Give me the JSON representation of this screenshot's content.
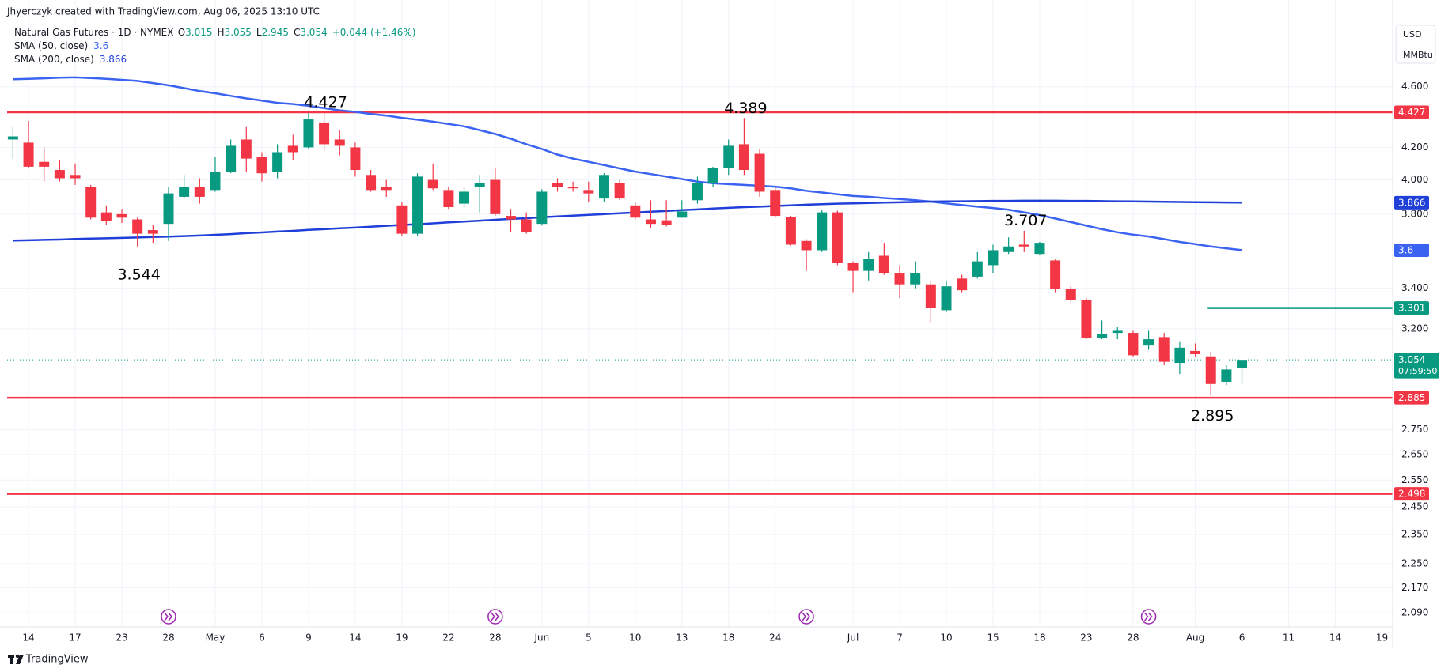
{
  "header": {
    "attribution": "Jhyerczyk created with TradingView.com, Aug 06, 2025 13:10 UTC"
  },
  "chart_data": {
    "type": "candlestick",
    "title": "Natural Gas Futures · 1D · NYMEX",
    "ohlc_letters": [
      "O",
      "H",
      "L",
      "C"
    ],
    "change": "+0.044 (+1.46%)",
    "currency": "USD",
    "unit": "MMBtu",
    "countdown": "07:59:50",
    "categories": [
      null,
      "14",
      null,
      null,
      "17",
      null,
      null,
      "23",
      null,
      null,
      "28",
      null,
      null,
      "May",
      null,
      null,
      "6",
      null,
      null,
      "9",
      null,
      null,
      "14",
      null,
      null,
      "19",
      null,
      null,
      "22",
      null,
      null,
      "28",
      null,
      null,
      "Jun",
      null,
      null,
      "5",
      null,
      null,
      "10",
      null,
      null,
      "13",
      null,
      null,
      "18",
      null,
      null,
      "24",
      null,
      null,
      null,
      null,
      "Jul",
      null,
      null,
      "7",
      null,
      null,
      "10",
      null,
      null,
      "15",
      null,
      null,
      "18",
      null,
      null,
      "23",
      null,
      null,
      "28",
      null,
      null,
      null,
      "Aug",
      null,
      null,
      "6",
      null,
      null,
      "11",
      null,
      null,
      "14",
      null,
      null,
      "19"
    ],
    "open": [
      4.25,
      4.23,
      4.11,
      4.06,
      4.03,
      3.96,
      3.81,
      3.8,
      3.77,
      3.71,
      3.745,
      3.9,
      3.96,
      3.94,
      4.05,
      4.25,
      4.14,
      4.05,
      4.21,
      4.2,
      4.36,
      4.25,
      4.2,
      4.03,
      3.96,
      3.85,
      3.69,
      4.0,
      3.94,
      3.86,
      3.96,
      4.0,
      3.79,
      3.77,
      3.745,
      3.98,
      3.96,
      3.94,
      3.89,
      3.98,
      3.85,
      3.77,
      3.765,
      3.78,
      3.88,
      3.98,
      4.07,
      4.22,
      4.16,
      3.94,
      3.785,
      3.65,
      3.6,
      3.81,
      3.53,
      3.49,
      3.57,
      3.48,
      3.42,
      3.42,
      3.29,
      3.45,
      3.46,
      3.52,
      3.59,
      3.63,
      3.58,
      3.545,
      3.395,
      3.34,
      3.155,
      3.18,
      3.18,
      3.12,
      3.16,
      3.04,
      3.095,
      3.07,
      2.955,
      3.015,
      null,
      null,
      null,
      null,
      null,
      null,
      null,
      null,
      null
    ],
    "high": [
      4.33,
      4.37,
      4.2,
      4.12,
      4.1,
      3.97,
      3.85,
      3.83,
      3.78,
      3.74,
      3.96,
      4.03,
      4.01,
      4.14,
      4.25,
      4.33,
      4.17,
      4.22,
      4.28,
      4.42,
      4.427,
      4.31,
      4.23,
      4.06,
      4.0,
      3.87,
      4.04,
      4.1,
      3.96,
      3.96,
      4.03,
      4.07,
      3.83,
      3.81,
      3.945,
      4.01,
      3.99,
      3.99,
      4.04,
      4.0,
      3.87,
      3.88,
      3.88,
      3.88,
      4.02,
      4.08,
      4.25,
      4.389,
      4.19,
      3.96,
      3.79,
      3.66,
      3.825,
      3.82,
      3.54,
      3.59,
      3.64,
      3.52,
      3.54,
      3.44,
      3.44,
      3.47,
      3.59,
      3.63,
      3.67,
      3.707,
      3.645,
      3.55,
      3.41,
      3.35,
      3.24,
      3.21,
      3.19,
      3.19,
      3.18,
      3.14,
      3.13,
      3.09,
      3.03,
      3.055,
      null,
      null,
      null,
      null,
      null,
      null,
      null,
      null,
      null
    ],
    "low": [
      4.13,
      4.07,
      3.99,
      3.99,
      3.97,
      3.77,
      3.74,
      3.75,
      3.62,
      3.64,
      3.65,
      3.89,
      3.86,
      3.93,
      4.04,
      4.05,
      3.99,
      4.01,
      4.12,
      4.19,
      4.18,
      4.15,
      4.02,
      3.93,
      3.9,
      3.68,
      3.68,
      3.94,
      3.83,
      3.84,
      3.81,
      3.79,
      3.7,
      3.69,
      3.735,
      3.93,
      3.93,
      3.87,
      3.87,
      3.88,
      3.77,
      3.72,
      3.73,
      3.78,
      3.86,
      3.96,
      4.03,
      4.03,
      3.9,
      3.78,
      3.625,
      3.49,
      3.59,
      3.52,
      3.38,
      3.44,
      3.47,
      3.35,
      3.4,
      3.23,
      3.28,
      3.38,
      3.45,
      3.48,
      3.58,
      3.59,
      3.575,
      3.38,
      3.33,
      3.15,
      3.15,
      3.15,
      3.07,
      3.1,
      3.03,
      2.99,
      3.07,
      2.895,
      2.94,
      2.945,
      null,
      null,
      null,
      null,
      null,
      null,
      null,
      null,
      null
    ],
    "close": [
      4.27,
      4.08,
      4.08,
      4.01,
      4.01,
      3.78,
      3.76,
      3.78,
      3.69,
      3.69,
      3.92,
      3.96,
      3.9,
      4.05,
      4.21,
      4.13,
      4.04,
      4.17,
      4.17,
      4.38,
      4.22,
      4.21,
      4.06,
      3.94,
      3.94,
      3.69,
      4.02,
      3.95,
      3.84,
      3.93,
      3.98,
      3.8,
      3.77,
      3.7,
      3.93,
      3.96,
      3.95,
      3.92,
      4.03,
      3.89,
      3.78,
      3.745,
      3.74,
      3.815,
      3.98,
      4.07,
      4.21,
      4.06,
      3.93,
      3.79,
      3.63,
      3.6,
      3.81,
      3.53,
      3.49,
      3.555,
      3.48,
      3.42,
      3.48,
      3.3,
      3.41,
      3.39,
      3.54,
      3.6,
      3.62,
      3.62,
      3.64,
      3.395,
      3.34,
      3.155,
      3.175,
      3.19,
      3.075,
      3.15,
      3.045,
      3.11,
      3.08,
      2.945,
      3.01,
      3.054,
      null,
      null,
      null,
      null,
      null,
      null,
      null,
      null,
      null
    ],
    "up_color": "#089981",
    "down_color": "#f23645",
    "series": [
      {
        "name": "SMA (50, close)",
        "color": "#3b63f2",
        "values": [
          4.652,
          4.655,
          4.658,
          4.663,
          4.665,
          4.66,
          4.655,
          4.648,
          4.64,
          4.625,
          4.61,
          4.59,
          4.57,
          4.555,
          4.537,
          4.52,
          4.505,
          4.49,
          4.482,
          4.47,
          4.455,
          4.44,
          4.43,
          4.416,
          4.405,
          4.39,
          4.378,
          4.365,
          4.35,
          4.335,
          4.31,
          4.285,
          4.255,
          4.22,
          4.19,
          4.155,
          4.13,
          4.11,
          4.09,
          4.07,
          4.05,
          4.035,
          4.02,
          4.005,
          3.99,
          3.98,
          3.975,
          3.97,
          3.965,
          3.96,
          3.95,
          3.935,
          3.925,
          3.915,
          3.905,
          3.9,
          3.893,
          3.887,
          3.88,
          3.872,
          3.862,
          3.852,
          3.843,
          3.835,
          3.825,
          3.81,
          3.795,
          3.775,
          3.755,
          3.735,
          3.715,
          3.698,
          3.685,
          3.675,
          3.66,
          3.645,
          3.633,
          3.62,
          3.61,
          3.6,
          null,
          null,
          null,
          null,
          null,
          null,
          null,
          null,
          null
        ]
      },
      {
        "name": "SMA (200, close)",
        "color": "#1f3fd8",
        "values": [
          3.652,
          3.654,
          3.656,
          3.658,
          3.661,
          3.663,
          3.665,
          3.667,
          3.669,
          3.672,
          3.674,
          3.677,
          3.68,
          3.684,
          3.688,
          3.693,
          3.697,
          3.702,
          3.706,
          3.711,
          3.715,
          3.72,
          3.724,
          3.729,
          3.734,
          3.739,
          3.743,
          3.748,
          3.753,
          3.758,
          3.763,
          3.768,
          3.773,
          3.777,
          3.782,
          3.787,
          3.791,
          3.796,
          3.8,
          3.805,
          3.809,
          3.814,
          3.818,
          3.823,
          3.827,
          3.832,
          3.836,
          3.84,
          3.843,
          3.847,
          3.85,
          3.854,
          3.857,
          3.86,
          3.862,
          3.864,
          3.866,
          3.868,
          3.87,
          3.872,
          3.873,
          3.874,
          3.875,
          3.876,
          3.876,
          3.877,
          3.877,
          3.877,
          3.876,
          3.876,
          3.875,
          3.874,
          3.873,
          3.872,
          3.871,
          3.87,
          3.869,
          3.868,
          3.867,
          3.866,
          null,
          null,
          null,
          null,
          null,
          null,
          null,
          null,
          null
        ]
      }
    ],
    "levels": [
      {
        "value": 4.427,
        "color": "#f23645"
      },
      {
        "value": 3.301,
        "color": "#089981"
      },
      {
        "value": 2.885,
        "color": "#f23645"
      },
      {
        "value": 2.498,
        "color": "#f23645"
      }
    ],
    "annotations": [
      4.427,
      4.389,
      3.707,
      3.544,
      2.895
    ],
    "ylim": [
      2.046,
      5.08
    ],
    "log_scale": true,
    "yticks": [
      {
        "value": 4.6,
        "label": "4.600"
      },
      {
        "value": 4.2,
        "label": "4.200"
      },
      {
        "value": 4.0,
        "label": "4.000"
      },
      {
        "value": 3.8,
        "label": "3.800"
      },
      {
        "value": 3.4,
        "label": "3.400"
      },
      {
        "value": 3.2,
        "label": "3.200"
      },
      {
        "value": 2.75,
        "label": "2.750"
      },
      {
        "value": 2.65,
        "label": "2.650"
      },
      {
        "value": 2.55,
        "label": "2.550"
      },
      {
        "value": 2.45,
        "label": "2.450"
      },
      {
        "value": 2.35,
        "label": "2.350"
      },
      {
        "value": 2.25,
        "label": "2.250"
      },
      {
        "value": 2.17,
        "label": "2.170"
      },
      {
        "value": 2.09,
        "label": "2.090"
      }
    ],
    "grid": true
  },
  "footer": {
    "brand": "TradingView"
  }
}
